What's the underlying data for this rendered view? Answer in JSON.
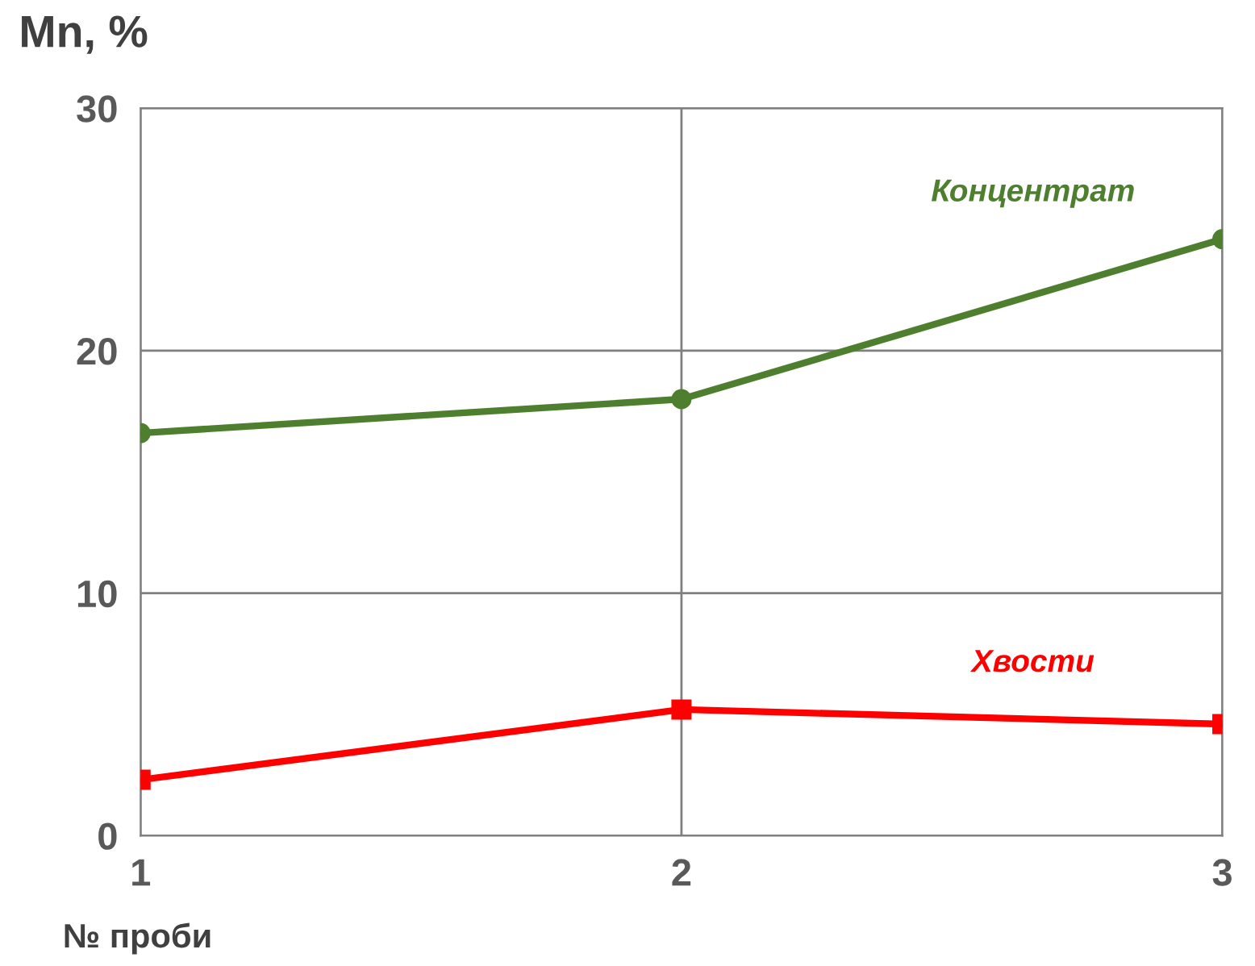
{
  "chart_data": {
    "type": "line",
    "xlabel": "№ проби",
    "ylabel": "Mn, %",
    "x": [
      1,
      2,
      3
    ],
    "xlim": [
      1,
      3
    ],
    "xticks": [
      1,
      2,
      3
    ],
    "ylim": [
      0,
      30
    ],
    "yticks": [
      0,
      10,
      20,
      30
    ],
    "grid": true,
    "legend": false,
    "series": [
      {
        "name": "Концентрат",
        "color": "#4e7f2f",
        "marker": "circle",
        "values": [
          16.6,
          18.0,
          24.6
        ]
      },
      {
        "name": "Хвости",
        "color": "#ff0000",
        "marker": "square",
        "values": [
          2.3,
          5.2,
          4.6
        ]
      }
    ]
  }
}
